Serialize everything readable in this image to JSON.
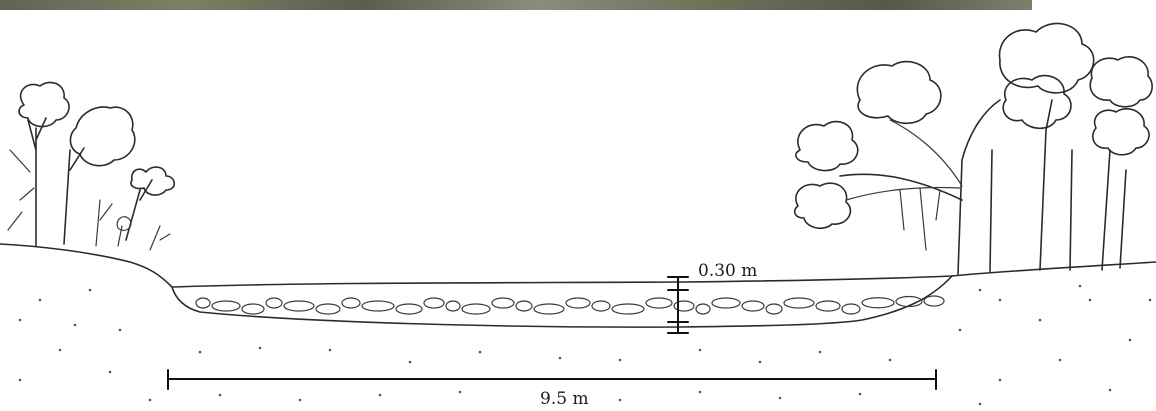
{
  "diagram": {
    "channel_width_label": "9.5 m",
    "sediment_depth_label": "0.30 m"
  }
}
